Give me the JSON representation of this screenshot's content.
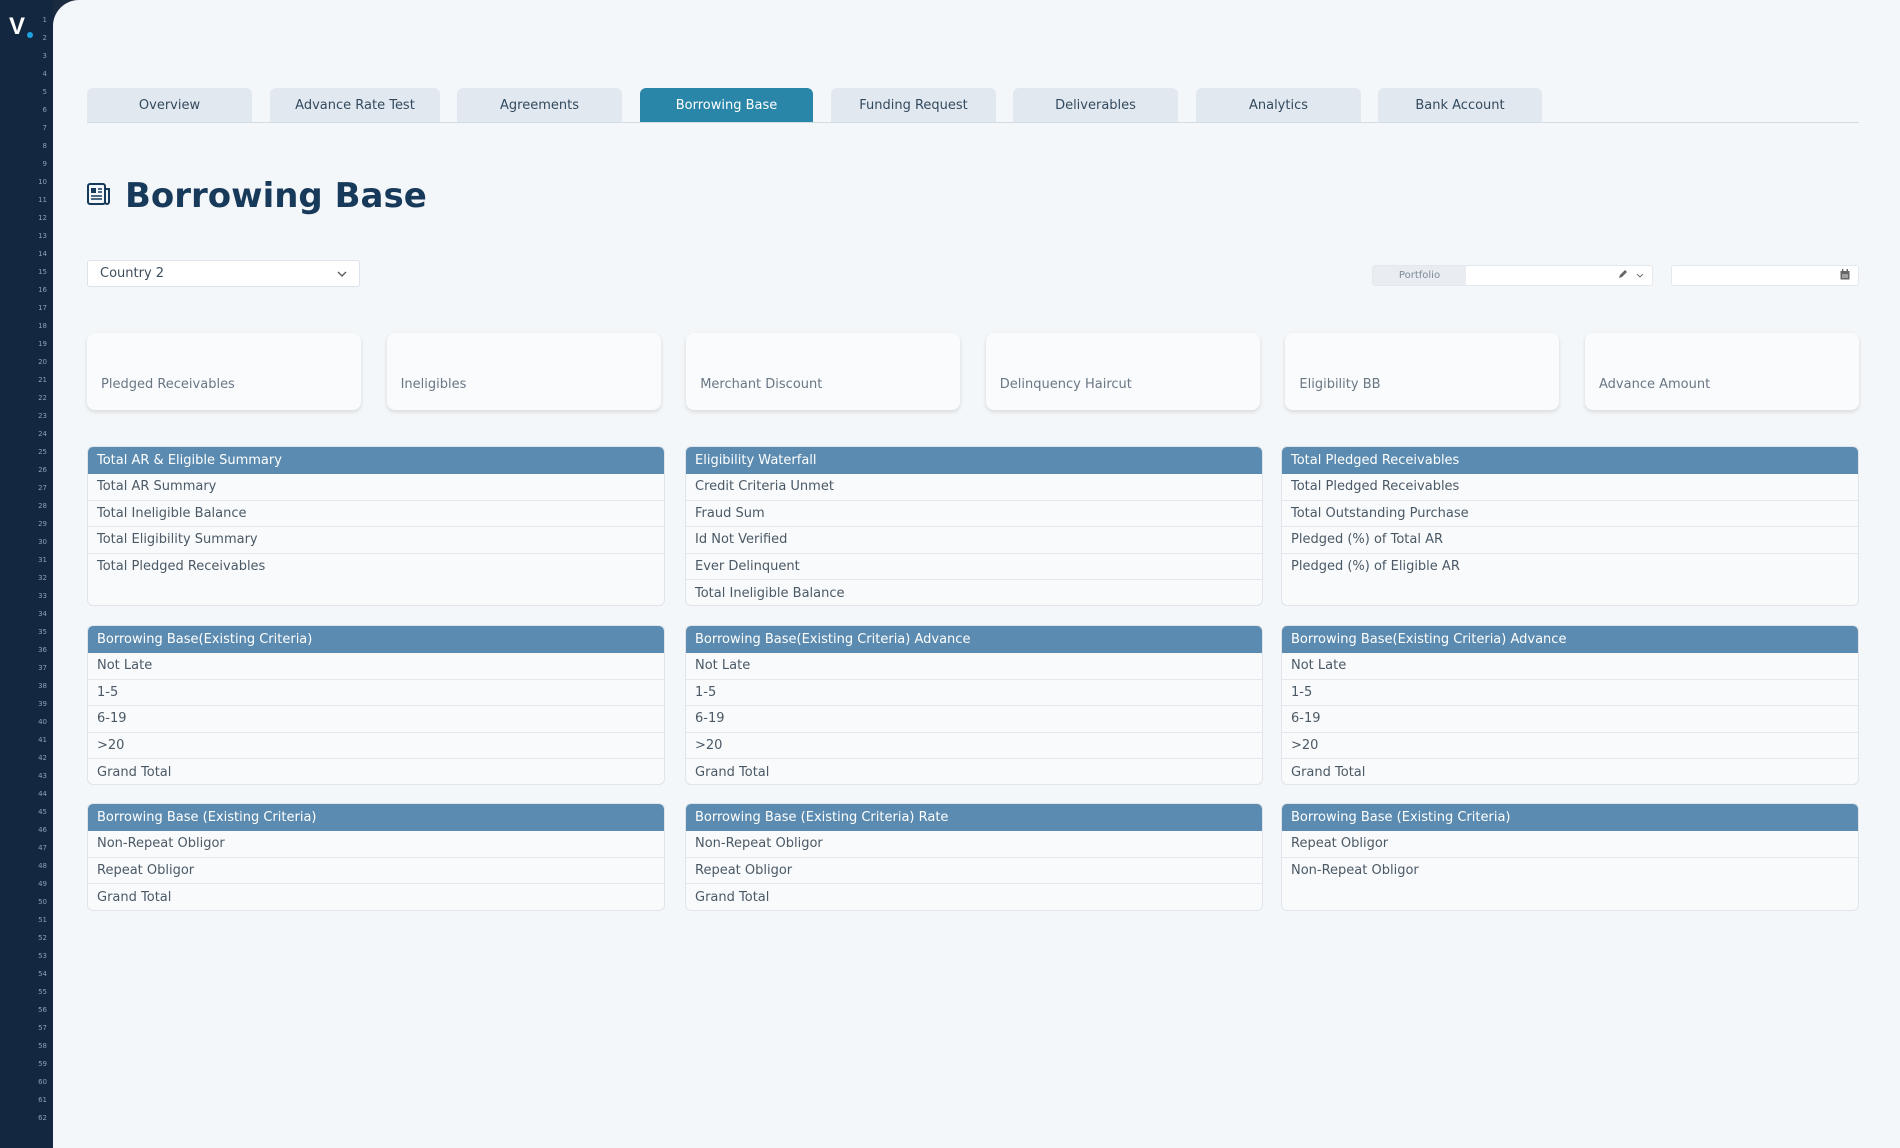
{
  "logo": "V",
  "line_numbers": [
    1,
    2,
    3,
    4,
    5,
    6,
    7,
    8,
    9,
    10,
    11,
    12,
    13,
    14,
    15,
    16,
    17,
    18,
    19,
    20,
    21,
    22,
    23,
    24,
    25,
    26,
    27,
    28,
    29,
    30,
    31,
    32,
    33,
    34,
    35,
    36,
    37,
    38,
    39,
    40,
    41,
    42,
    43,
    44,
    45,
    46,
    47,
    48,
    49,
    50,
    51,
    52,
    53,
    54,
    55,
    56,
    57,
    58,
    59,
    60,
    61,
    62
  ],
  "tabs": [
    {
      "label": "Overview"
    },
    {
      "label": "Advance Rate Test"
    },
    {
      "label": "Agreements"
    },
    {
      "label": "Borrowing Base",
      "active": true
    },
    {
      "label": "Funding Request"
    },
    {
      "label": "Deliverables"
    },
    {
      "label": "Analytics"
    },
    {
      "label": "Bank Account"
    }
  ],
  "page": {
    "title": "Borrowing Base",
    "icon": "newspaper-icon"
  },
  "filters": {
    "country": "Country 2",
    "portfolio_label": "Portfolio",
    "portfolio_value": "",
    "date_value": ""
  },
  "kpis": [
    {
      "label": "Pledged Receivables"
    },
    {
      "label": "Ineligibles"
    },
    {
      "label": "Merchant Discount"
    },
    {
      "label": "Delinquency Haircut"
    },
    {
      "label": "Eligibility BB"
    },
    {
      "label": "Advance Amount"
    }
  ],
  "panels": [
    {
      "title": "Total AR & Eligible Summary",
      "rows": [
        "Total AR Summary",
        "Total Ineligible Balance",
        "Total Eligibility Summary",
        "Total Pledged Receivables"
      ]
    },
    {
      "title": "Eligibility Waterfall",
      "rows": [
        "Credit Criteria Unmet",
        "Fraud Sum",
        "Id Not Verified",
        "Ever Delinquent",
        "Total Ineligible Balance"
      ]
    },
    {
      "title": "Total Pledged Receivables",
      "rows": [
        "Total Pledged Receivables",
        "Total Outstanding Purchase",
        "Pledged (%) of Total AR",
        "Pledged (%) of Eligible AR"
      ]
    },
    {
      "title": "Borrowing Base(Existing Criteria)",
      "rows": [
        "Not Late",
        "1-5",
        "6-19",
        ">20",
        "Grand Total"
      ]
    },
    {
      "title": "Borrowing Base(Existing Criteria) Advance",
      "rows": [
        "Not Late",
        "1-5",
        "6-19",
        ">20",
        "Grand Total"
      ]
    },
    {
      "title": "Borrowing Base(Existing Criteria) Advance",
      "rows": [
        "Not Late",
        "1-5",
        "6-19",
        ">20",
        "Grand Total"
      ]
    },
    {
      "title": "Borrowing Base (Existing Criteria)",
      "rows": [
        "Non-Repeat Obligor",
        "Repeat Obligor",
        "Grand Total"
      ]
    },
    {
      "title": "Borrowing Base (Existing Criteria) Rate",
      "rows": [
        "Non-Repeat Obligor",
        "Repeat Obligor",
        "Grand Total"
      ]
    },
    {
      "title": "Borrowing Base (Existing Criteria)",
      "rows": [
        "Repeat Obligor",
        "Non-Repeat Obligor"
      ]
    }
  ],
  "colors": {
    "sidebar": "#132840",
    "active_tab": "#2a86a8",
    "panel_header": "#5b8bb0",
    "title": "#173a5a"
  }
}
